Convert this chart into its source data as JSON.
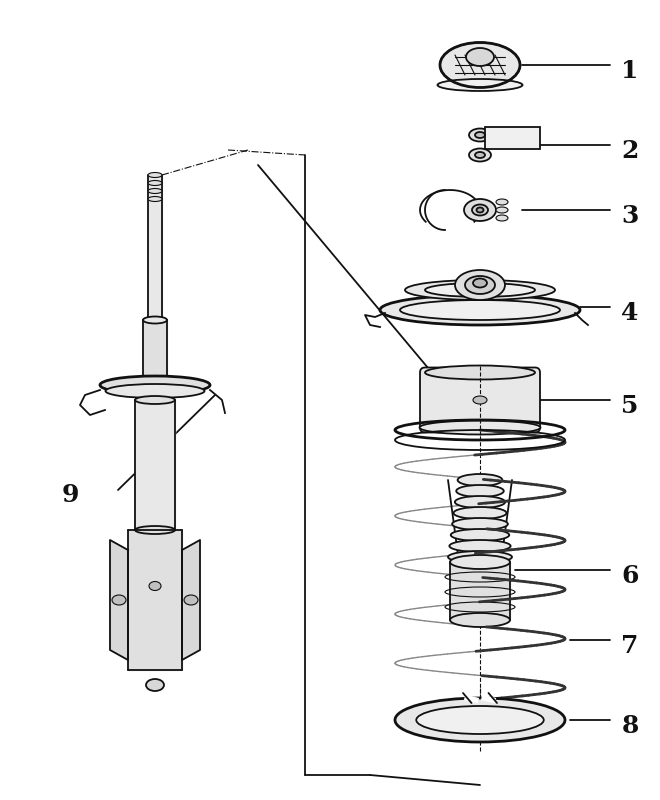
{
  "background_color": "#ffffff",
  "line_color": "#111111",
  "label_color": "#000000",
  "fig_width": 6.6,
  "fig_height": 8.0,
  "dpi": 100,
  "part_labels": [
    "1",
    "2",
    "3",
    "4",
    "5",
    "6",
    "7",
    "8",
    "9"
  ],
  "label_fontsize": 18,
  "label_fontweight": "bold",
  "lw_main": 1.3,
  "lw_thick": 2.0,
  "lw_thin": 0.8
}
